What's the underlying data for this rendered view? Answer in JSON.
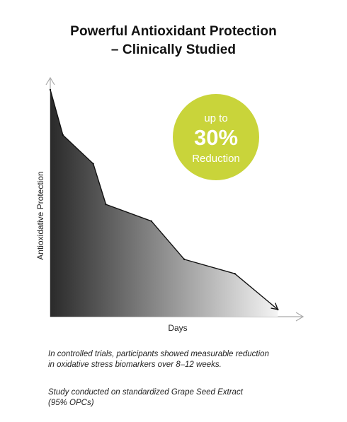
{
  "title_lines": [
    "Powerful Antioxidant Protection",
    "– Clinically Studied"
  ],
  "badge": {
    "line1": "up to",
    "value": "30%",
    "line3": "Reduction",
    "color": "#c9d43a"
  },
  "notes": {
    "trial_lines": [
      "In controlled trials, participants showed measurable reduction",
      "in oxidative stress biomarkers over 8–12 weeks."
    ],
    "study_lines": [
      "Study conducted on standardized Grape Seed Extract",
      "(95% OPCs)"
    ]
  },
  "chart_data": {
    "type": "area",
    "xlabel": "Days",
    "ylabel": "Antioxidative Protection",
    "x": [
      0,
      5,
      17,
      22,
      40,
      53,
      73,
      90
    ],
    "values": [
      95,
      76,
      64,
      47,
      40,
      24,
      18,
      3
    ],
    "xlim": [
      0,
      100
    ],
    "ylim": [
      0,
      100
    ],
    "ticks_shown": false,
    "grid": false,
    "fill_gradient": [
      "#2a2a2a",
      "#f4f4f4"
    ],
    "line_color": "#111111",
    "axis_color": "#aaaaaa",
    "end_arrow": true
  }
}
